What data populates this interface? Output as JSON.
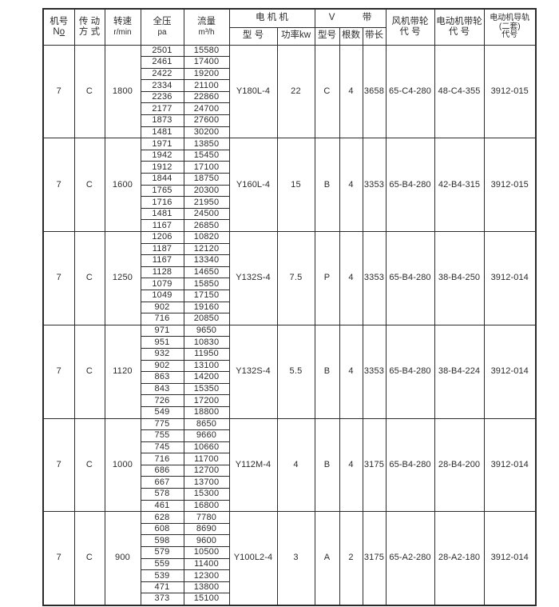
{
  "table": {
    "header": {
      "machine_no_l1": "机号",
      "machine_no_n": "N",
      "machine_no_o": "o",
      "drive_l1": "传 动",
      "drive_l2": "方 式",
      "speed_l1": "转速",
      "speed_l2": "r/min",
      "pressure_l1": "全压",
      "pressure_l2": "pa",
      "flow_l1": "流量",
      "flow_l2": "m³/h",
      "motor_group": "电 机 机",
      "motor_model": "型 号",
      "motor_power": "功率kw",
      "vbelt_v": "V",
      "vbelt_band": "带",
      "belt_type": "型号",
      "belt_count": "根数",
      "belt_length": "带长",
      "fan_pulley_l1": "风机带轮",
      "fan_pulley_l2": "代 号",
      "motor_pulley_l1": "电动机带轮",
      "motor_pulley_l2": "代 号",
      "rail_l1": "电动机导轨",
      "rail_l2": "(二套)",
      "rail_l3": "代号"
    },
    "blocks": [
      {
        "machine_no": "7",
        "drive": "C",
        "speed": "1800",
        "motor_model": "Y180L-4",
        "motor_power": "22",
        "belt_type": "C",
        "belt_count": "4",
        "belt_length": "3658",
        "fan_pulley": "65-C4-280",
        "motor_pulley": "48-C4-355",
        "rail": "3912-015",
        "rows": [
          {
            "pressure": "2501",
            "flow": "15580"
          },
          {
            "pressure": "2461",
            "flow": "17400"
          },
          {
            "pressure": "2422",
            "flow": "19200"
          },
          {
            "pressure": "2334",
            "flow": "21100"
          },
          {
            "pressure": "2236",
            "flow": "22860"
          },
          {
            "pressure": "2177",
            "flow": "24700"
          },
          {
            "pressure": "1873",
            "flow": "27600"
          },
          {
            "pressure": "1481",
            "flow": "30200"
          }
        ]
      },
      {
        "machine_no": "7",
        "drive": "C",
        "speed": "1600",
        "motor_model": "Y160L-4",
        "motor_power": "15",
        "belt_type": "B",
        "belt_count": "4",
        "belt_length": "3353",
        "fan_pulley": "65-B4-280",
        "motor_pulley": "42-B4-315",
        "rail": "3912-015",
        "rows": [
          {
            "pressure": "1971",
            "flow": "13850"
          },
          {
            "pressure": "1942",
            "flow": "15450"
          },
          {
            "pressure": "1912",
            "flow": "17100"
          },
          {
            "pressure": "1844",
            "flow": "18750"
          },
          {
            "pressure": "1765",
            "flow": "20300"
          },
          {
            "pressure": "1716",
            "flow": "21950"
          },
          {
            "pressure": "1481",
            "flow": "24500"
          },
          {
            "pressure": "1167",
            "flow": "26850"
          }
        ]
      },
      {
        "machine_no": "7",
        "drive": "C",
        "speed": "1250",
        "motor_model": "Y132S-4",
        "motor_power": "7.5",
        "belt_type": "P",
        "belt_count": "4",
        "belt_length": "3353",
        "fan_pulley": "65-B4-280",
        "motor_pulley": "38-B4-250",
        "rail": "3912-014",
        "rows": [
          {
            "pressure": "1206",
            "flow": "10820"
          },
          {
            "pressure": "1187",
            "flow": "12120"
          },
          {
            "pressure": "1167",
            "flow": "13340"
          },
          {
            "pressure": "1128",
            "flow": "14650"
          },
          {
            "pressure": "1079",
            "flow": "15850"
          },
          {
            "pressure": "1049",
            "flow": "17150"
          },
          {
            "pressure": "902",
            "flow": "19160"
          },
          {
            "pressure": "716",
            "flow": "20850"
          }
        ]
      },
      {
        "machine_no": "7",
        "drive": "C",
        "speed": "1120",
        "motor_model": "Y132S-4",
        "motor_power": "5.5",
        "belt_type": "B",
        "belt_count": "4",
        "belt_length": "3353",
        "fan_pulley": "65-B4-280",
        "motor_pulley": "38-B4-224",
        "rail": "3912-014",
        "rows": [
          {
            "pressure": "971",
            "flow": "9650"
          },
          {
            "pressure": "951",
            "flow": "10830"
          },
          {
            "pressure": "932",
            "flow": "11950"
          },
          {
            "pressure": "902",
            "flow": "13100"
          },
          {
            "pressure": "863",
            "flow": "14200"
          },
          {
            "pressure": "843",
            "flow": "15350"
          },
          {
            "pressure": "726",
            "flow": "17200"
          },
          {
            "pressure": "549",
            "flow": "18800"
          }
        ]
      },
      {
        "machine_no": "7",
        "drive": "C",
        "speed": "1000",
        "motor_model": "Y112M-4",
        "motor_power": "4",
        "belt_type": "B",
        "belt_count": "4",
        "belt_length": "3175",
        "fan_pulley": "65-B4-280",
        "motor_pulley": "28-B4-200",
        "rail": "3912-014",
        "rows": [
          {
            "pressure": "775",
            "flow": "8650"
          },
          {
            "pressure": "755",
            "flow": "9660"
          },
          {
            "pressure": "745",
            "flow": "10660"
          },
          {
            "pressure": "716",
            "flow": "11700"
          },
          {
            "pressure": "686",
            "flow": "12700"
          },
          {
            "pressure": "667",
            "flow": "13700"
          },
          {
            "pressure": "578",
            "flow": "15300"
          },
          {
            "pressure": "461",
            "flow": "16800"
          }
        ]
      },
      {
        "machine_no": "7",
        "drive": "C",
        "speed": "900",
        "motor_model": "Y100L2-4",
        "motor_power": "3",
        "belt_type": "A",
        "belt_count": "2",
        "belt_length": "3175",
        "fan_pulley": "65-A2-280",
        "motor_pulley": "28-A2-180",
        "rail": "3912-014",
        "rows": [
          {
            "pressure": "628",
            "flow": "7780"
          },
          {
            "pressure": "608",
            "flow": "8690"
          },
          {
            "pressure": "598",
            "flow": "9600"
          },
          {
            "pressure": "579",
            "flow": "10500"
          },
          {
            "pressure": "559",
            "flow": "11400"
          },
          {
            "pressure": "539",
            "flow": "12300"
          },
          {
            "pressure": "471",
            "flow": "13800"
          },
          {
            "pressure": "373",
            "flow": "15100"
          }
        ]
      }
    ]
  }
}
